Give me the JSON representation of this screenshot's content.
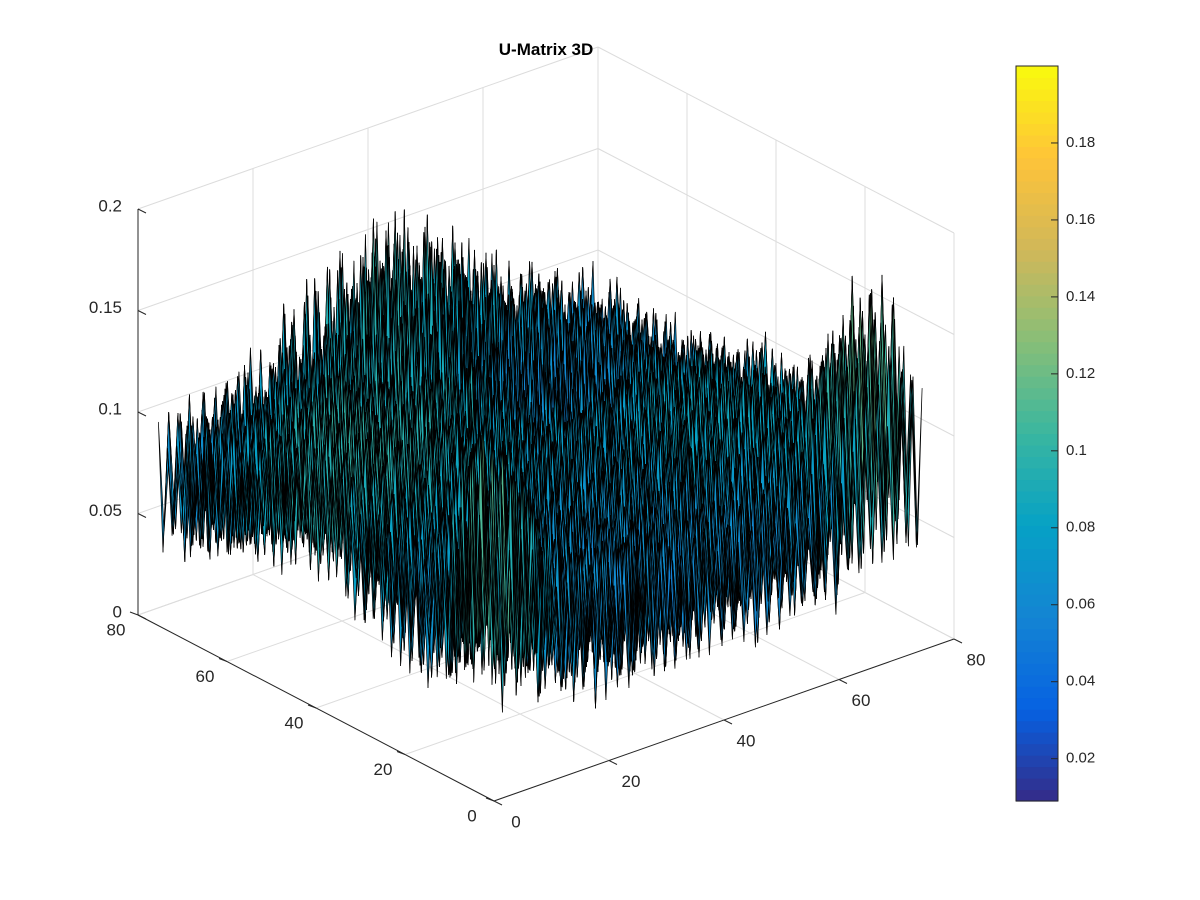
{
  "chart_data": {
    "type": "surface",
    "title": "U-Matrix 3D",
    "x": {
      "label": "",
      "lim": [
        0,
        80
      ],
      "ticks": [
        0,
        20,
        40,
        60,
        80
      ],
      "tick_labels": [
        "0",
        "20",
        "40",
        "60",
        "80"
      ]
    },
    "y": {
      "label": "",
      "lim": [
        0,
        80
      ],
      "ticks": [
        0,
        20,
        40,
        60,
        80
      ],
      "tick_labels": [
        "0",
        "20",
        "40",
        "60",
        "80"
      ]
    },
    "z": {
      "label": "",
      "lim": [
        0,
        0.2
      ],
      "ticks": [
        0,
        0.05,
        0.1,
        0.15,
        0.2
      ],
      "tick_labels": [
        "0",
        "0.05",
        "0.1",
        "0.15",
        "0.2"
      ]
    },
    "grid": true,
    "grid_size": [
      75,
      75
    ],
    "colormap": "parula",
    "edge_color": "#000000",
    "colorbar": {
      "location": "right",
      "lim": [
        0.009,
        0.2
      ],
      "ticks": [
        0.02,
        0.04,
        0.06,
        0.08,
        0.1,
        0.12,
        0.14,
        0.16,
        0.18
      ],
      "tick_labels": [
        "0.02",
        "0.04",
        "0.06",
        "0.08",
        "0.1",
        "0.12",
        "0.14",
        "0.16",
        "0.18"
      ]
    },
    "z_range_observed": [
      0.009,
      0.2
    ]
  }
}
